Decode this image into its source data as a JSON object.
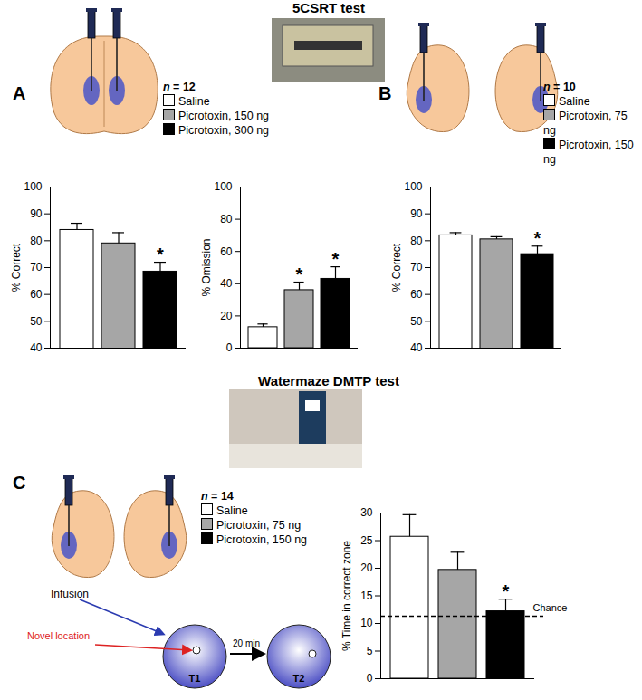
{
  "sections": [
    {
      "title": "5CSRT test"
    },
    {
      "title": "Watermaze DMTP test"
    }
  ],
  "panels": [
    {
      "label": "A",
      "n_label": "n = 12"
    },
    {
      "label": "B",
      "n_label": "n = 10"
    },
    {
      "label": "C",
      "n_label": "n = 14",
      "infusion": "Infusion",
      "novel_location": "Novel location",
      "trials": [
        "T1",
        "T2"
      ],
      "delay": "20 min"
    }
  ],
  "chart_data": [
    {
      "type": "bar",
      "panel": "A",
      "ylabel": "% Correct",
      "categories": [
        "Saline",
        "Picrotoxin, 150 ng",
        "Picrotoxin, 300 ng"
      ],
      "values": [
        84,
        79,
        68.5
      ],
      "errors": [
        2.5,
        4,
        3.5
      ],
      "significance": [
        null,
        null,
        "*"
      ],
      "colors": [
        "#ffffff",
        "#a6a6a6",
        "#000000"
      ],
      "ylim": [
        40,
        100
      ],
      "yticks": [
        40,
        50,
        60,
        70,
        80,
        90,
        100
      ],
      "tick_labels": "y"
    },
    {
      "type": "bar",
      "panel": "A",
      "ylabel": "% Omission",
      "categories": [
        "Saline",
        "Picrotoxin, 150 ng",
        "Picrotoxin, 300 ng"
      ],
      "values": [
        13,
        36,
        43
      ],
      "errors": [
        2,
        5,
        7.5
      ],
      "significance": [
        null,
        "*",
        "*"
      ],
      "colors": [
        "#ffffff",
        "#a6a6a6",
        "#000000"
      ],
      "ylim": [
        0,
        100
      ],
      "yticks": [
        0,
        20,
        40,
        60,
        80,
        100
      ],
      "tick_labels": "y"
    },
    {
      "type": "bar",
      "panel": "B",
      "ylabel": "% Correct",
      "categories": [
        "Saline",
        "Picrotoxin, 75 ng",
        "Picrotoxin, 150 ng"
      ],
      "values": [
        82,
        80.5,
        75
      ],
      "errors": [
        1,
        1,
        3
      ],
      "significance": [
        null,
        null,
        "*"
      ],
      "colors": [
        "#ffffff",
        "#a6a6a6",
        "#000000"
      ],
      "ylim": [
        40,
        100
      ],
      "yticks": [
        40,
        50,
        60,
        70,
        80,
        90,
        100
      ],
      "tick_labels": "y"
    },
    {
      "type": "bar",
      "panel": "C",
      "ylabel": "% Time in correct zone",
      "categories": [
        "Saline",
        "Picrotoxin, 75 ng",
        "Picrotoxin, 150 ng"
      ],
      "values": [
        25.7,
        19.7,
        12.2
      ],
      "errors": [
        4,
        3.2,
        2.2
      ],
      "significance": [
        null,
        null,
        "*"
      ],
      "colors": [
        "#ffffff",
        "#a6a6a6",
        "#000000"
      ],
      "ylim": [
        0,
        30
      ],
      "yticks": [
        0,
        5,
        10,
        15,
        20,
        25,
        30
      ],
      "tick_labels": "y",
      "reference_line": {
        "value": 11.3,
        "label": "Chance",
        "line_style": "dashed"
      }
    }
  ]
}
